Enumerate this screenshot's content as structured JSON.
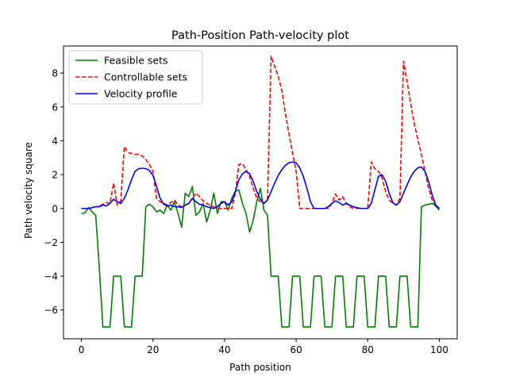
{
  "chart_data": {
    "type": "line",
    "title": "Path-Position Path-velocity plot",
    "xlabel": "Path position",
    "ylabel": "Path velocity square",
    "xlim": [
      -5,
      105
    ],
    "ylim": [
      -7.7,
      9.6
    ],
    "xticks": [
      0,
      20,
      40,
      60,
      80,
      100
    ],
    "yticks": [
      -6,
      -4,
      -2,
      0,
      2,
      4,
      6,
      8
    ],
    "grid": false,
    "legend_position": "top-left",
    "series": [
      {
        "name": "Feasible sets",
        "color": "#008000",
        "style": "solid",
        "points": [
          [
            0,
            -0.3
          ],
          [
            1,
            -0.25
          ],
          [
            2,
            0.05
          ],
          [
            3,
            -0.2
          ],
          [
            4,
            -0.4
          ],
          [
            5,
            -3.5
          ],
          [
            6,
            -7
          ],
          [
            7,
            -7
          ],
          [
            8,
            -7
          ],
          [
            9,
            -4
          ],
          [
            10,
            -4
          ],
          [
            11,
            -4
          ],
          [
            12,
            -7
          ],
          [
            13,
            -7
          ],
          [
            14,
            -7
          ],
          [
            15,
            -4
          ],
          [
            16,
            -4
          ],
          [
            17,
            -4
          ],
          [
            18,
            0.1
          ],
          [
            19,
            0.25
          ],
          [
            20,
            0.1
          ],
          [
            21,
            -0.2
          ],
          [
            22,
            -0.1
          ],
          [
            23,
            -0.3
          ],
          [
            24,
            0.2
          ],
          [
            25,
            -0.1
          ],
          [
            26,
            0.4
          ],
          [
            27,
            -0.3
          ],
          [
            28,
            -1.1
          ],
          [
            29,
            0.9
          ],
          [
            30,
            0.7
          ],
          [
            31,
            1.3
          ],
          [
            32,
            -0.4
          ],
          [
            33,
            -0.2
          ],
          [
            34,
            0.3
          ],
          [
            35,
            -0.8
          ],
          [
            36,
            -0.1
          ],
          [
            37,
            0.9
          ],
          [
            38,
            -0.3
          ],
          [
            39,
            0.4
          ],
          [
            40,
            0.4
          ],
          [
            41,
            -0.1
          ],
          [
            42,
            0.6
          ],
          [
            43,
            1.0
          ],
          [
            44,
            1.1
          ],
          [
            45,
            0.3
          ],
          [
            46,
            -0.3
          ],
          [
            47,
            -1.4
          ],
          [
            48,
            -0.7
          ],
          [
            49,
            0.4
          ],
          [
            50,
            1.2
          ],
          [
            51,
            -0.1
          ],
          [
            52,
            -0.4
          ],
          [
            53,
            -4
          ],
          [
            54,
            -4
          ],
          [
            55,
            -4
          ],
          [
            56,
            -7
          ],
          [
            57,
            -7
          ],
          [
            58,
            -7
          ],
          [
            59,
            -4
          ],
          [
            60,
            -4
          ],
          [
            61,
            -4
          ],
          [
            62,
            -7
          ],
          [
            63,
            -7
          ],
          [
            64,
            -7
          ],
          [
            65,
            -4
          ],
          [
            66,
            -4
          ],
          [
            67,
            -4
          ],
          [
            68,
            -7
          ],
          [
            69,
            -7
          ],
          [
            70,
            -7
          ],
          [
            71,
            -4
          ],
          [
            72,
            -4
          ],
          [
            73,
            -4
          ],
          [
            74,
            -7
          ],
          [
            75,
            -7
          ],
          [
            76,
            -7
          ],
          [
            77,
            -4
          ],
          [
            78,
            -4
          ],
          [
            79,
            -4
          ],
          [
            80,
            -7
          ],
          [
            81,
            -7
          ],
          [
            82,
            -7
          ],
          [
            83,
            -4
          ],
          [
            84,
            -4
          ],
          [
            85,
            -4
          ],
          [
            86,
            -7
          ],
          [
            87,
            -7
          ],
          [
            88,
            -7
          ],
          [
            89,
            -4
          ],
          [
            90,
            -4
          ],
          [
            91,
            -4
          ],
          [
            92,
            -7
          ],
          [
            93,
            -7
          ],
          [
            94,
            -7
          ],
          [
            95,
            0.1
          ],
          [
            96,
            0.2
          ],
          [
            97,
            0.25
          ],
          [
            98,
            0.3
          ],
          [
            99,
            0.15
          ],
          [
            100,
            -0.1
          ]
        ]
      },
      {
        "name": "Controllable sets",
        "color": "#ff0000",
        "style": "dashed",
        "points": [
          [
            0,
            0
          ],
          [
            1,
            0
          ],
          [
            2,
            0
          ],
          [
            3,
            0.05
          ],
          [
            4,
            0.1
          ],
          [
            5,
            0.15
          ],
          [
            6,
            0.25
          ],
          [
            7,
            0.35
          ],
          [
            8,
            0.3
          ],
          [
            9,
            1.5
          ],
          [
            10,
            0.2
          ],
          [
            11,
            0.45
          ],
          [
            12,
            3.65
          ],
          [
            13,
            3.3
          ],
          [
            14,
            3.25
          ],
          [
            15,
            3.2
          ],
          [
            16,
            3.2
          ],
          [
            17,
            3.1
          ],
          [
            18,
            2.9
          ],
          [
            19,
            2.6
          ],
          [
            20,
            2.2
          ],
          [
            21,
            0.6
          ],
          [
            22,
            0.4
          ],
          [
            23,
            0.3
          ],
          [
            24,
            0.2
          ],
          [
            25,
            0.35
          ],
          [
            26,
            0.5
          ],
          [
            27,
            0.2
          ],
          [
            28,
            0.1
          ],
          [
            29,
            0.2
          ],
          [
            30,
            0.3
          ],
          [
            31,
            0.6
          ],
          [
            32,
            0.9
          ],
          [
            33,
            0.7
          ],
          [
            34,
            0.45
          ],
          [
            35,
            0.3
          ],
          [
            36,
            0.2
          ],
          [
            37,
            0.1
          ],
          [
            38,
            0
          ],
          [
            39,
            0
          ],
          [
            40,
            0
          ],
          [
            41,
            0
          ],
          [
            42,
            0
          ],
          [
            43,
            0.9
          ],
          [
            44,
            2.6
          ],
          [
            45,
            2.65
          ],
          [
            46,
            2.3
          ],
          [
            47,
            1.9
          ],
          [
            48,
            1.2
          ],
          [
            49,
            0.6
          ],
          [
            50,
            0.4
          ],
          [
            51,
            0.3
          ],
          [
            52,
            0.5
          ],
          [
            53,
            9.0
          ],
          [
            54,
            8.4
          ],
          [
            55,
            7.8
          ],
          [
            56,
            7.0
          ],
          [
            57,
            5.6
          ],
          [
            58,
            4.4
          ],
          [
            59,
            3.3
          ],
          [
            60,
            2.2
          ],
          [
            61,
            0
          ],
          [
            62,
            0
          ],
          [
            63,
            0
          ],
          [
            64,
            0
          ],
          [
            65,
            0
          ],
          [
            66,
            0
          ],
          [
            67,
            0
          ],
          [
            68,
            0
          ],
          [
            69,
            0
          ],
          [
            70,
            0.3
          ],
          [
            71,
            0.85
          ],
          [
            72,
            0.5
          ],
          [
            73,
            0.7
          ],
          [
            74,
            0.3
          ],
          [
            75,
            0.1
          ],
          [
            76,
            0
          ],
          [
            77,
            0
          ],
          [
            78,
            0
          ],
          [
            79,
            0
          ],
          [
            80,
            0
          ],
          [
            81,
            2.75
          ],
          [
            82,
            2.35
          ],
          [
            83,
            2.2
          ],
          [
            84,
            1.8
          ],
          [
            85,
            1.0
          ],
          [
            86,
            0.5
          ],
          [
            87,
            0.3
          ],
          [
            88,
            0.2
          ],
          [
            89,
            0.6
          ],
          [
            90,
            8.7
          ],
          [
            91,
            7.5
          ],
          [
            92,
            6.2
          ],
          [
            93,
            5.0
          ],
          [
            94,
            4.1
          ],
          [
            95,
            3.2
          ],
          [
            96,
            2.2
          ],
          [
            97,
            1.2
          ],
          [
            98,
            0.5
          ],
          [
            99,
            0.2
          ],
          [
            100,
            0
          ]
        ]
      },
      {
        "name": "Velocity profile",
        "color": "#0000ff",
        "style": "solid",
        "points": [
          [
            0,
            0
          ],
          [
            1,
            0
          ],
          [
            2,
            0
          ],
          [
            3,
            0.05
          ],
          [
            4,
            0.1
          ],
          [
            5,
            0.1
          ],
          [
            6,
            0.2
          ],
          [
            7,
            0.15
          ],
          [
            8,
            0.3
          ],
          [
            9,
            0.55
          ],
          [
            10,
            0.4
          ],
          [
            11,
            0.3
          ],
          [
            12,
            0.6
          ],
          [
            13,
            1.1
          ],
          [
            14,
            1.7
          ],
          [
            15,
            2.2
          ],
          [
            16,
            2.35
          ],
          [
            17,
            2.38
          ],
          [
            18,
            2.35
          ],
          [
            19,
            2.25
          ],
          [
            20,
            1.95
          ],
          [
            21,
            1.3
          ],
          [
            22,
            0.6
          ],
          [
            23,
            0.25
          ],
          [
            24,
            0.15
          ],
          [
            25,
            0.2
          ],
          [
            26,
            0.1
          ],
          [
            27,
            0.1
          ],
          [
            28,
            0.05
          ],
          [
            29,
            0.2
          ],
          [
            30,
            0.3
          ],
          [
            31,
            0.6
          ],
          [
            32,
            0.4
          ],
          [
            33,
            0.25
          ],
          [
            34,
            0.2
          ],
          [
            35,
            0.1
          ],
          [
            36,
            0.05
          ],
          [
            37,
            0
          ],
          [
            38,
            0.1
          ],
          [
            39,
            0.3
          ],
          [
            40,
            0.4
          ],
          [
            41,
            0.2
          ],
          [
            42,
            0.4
          ],
          [
            43,
            1.0
          ],
          [
            44,
            1.7
          ],
          [
            45,
            2.05
          ],
          [
            46,
            2.2
          ],
          [
            47,
            2.05
          ],
          [
            48,
            1.6
          ],
          [
            49,
            1.0
          ],
          [
            50,
            0.55
          ],
          [
            51,
            0.3
          ],
          [
            52,
            0.5
          ],
          [
            53,
            1.0
          ],
          [
            54,
            1.5
          ],
          [
            55,
            1.95
          ],
          [
            56,
            2.3
          ],
          [
            57,
            2.55
          ],
          [
            58,
            2.7
          ],
          [
            59,
            2.75
          ],
          [
            60,
            2.7
          ],
          [
            61,
            2.4
          ],
          [
            62,
            1.9
          ],
          [
            63,
            1.2
          ],
          [
            64,
            0.4
          ],
          [
            65,
            0
          ],
          [
            66,
            0
          ],
          [
            67,
            0
          ],
          [
            68,
            0
          ],
          [
            69,
            0.1
          ],
          [
            70,
            0.3
          ],
          [
            71,
            0.45
          ],
          [
            72,
            0.35
          ],
          [
            73,
            0.2
          ],
          [
            74,
            0.3
          ],
          [
            75,
            0.2
          ],
          [
            76,
            0.1
          ],
          [
            77,
            0.05
          ],
          [
            78,
            0
          ],
          [
            79,
            0
          ],
          [
            80,
            0
          ],
          [
            81,
            0.3
          ],
          [
            82,
            1.1
          ],
          [
            83,
            1.9
          ],
          [
            84,
            2.0
          ],
          [
            85,
            1.6
          ],
          [
            86,
            0.9
          ],
          [
            87,
            0.35
          ],
          [
            88,
            0.2
          ],
          [
            89,
            0.4
          ],
          [
            90,
            0.9
          ],
          [
            91,
            1.4
          ],
          [
            92,
            1.85
          ],
          [
            93,
            2.2
          ],
          [
            94,
            2.4
          ],
          [
            95,
            2.45
          ],
          [
            96,
            2.2
          ],
          [
            97,
            1.6
          ],
          [
            98,
            0.8
          ],
          [
            99,
            0.2
          ],
          [
            100,
            0
          ]
        ]
      }
    ]
  }
}
